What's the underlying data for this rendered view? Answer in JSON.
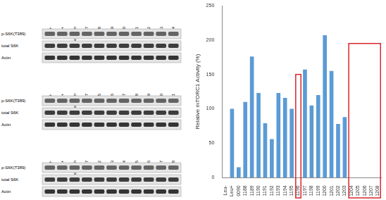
{
  "chart_data": {
    "type": "bar",
    "y_label": "Relative mTORC1 Activity (%)",
    "categories": [
      "Leu-",
      "Leu+",
      "0090",
      "1188",
      "1189",
      "1190",
      "1191",
      "1192",
      "1193",
      "1194",
      "1195",
      "1196",
      "1197",
      "1198",
      "1199",
      "1200",
      "1201",
      "1202",
      "1203",
      "1204",
      "1205",
      "1206",
      "1207",
      "1208"
    ],
    "values": [
      0,
      100,
      15,
      110,
      176,
      123,
      79,
      56,
      123,
      116,
      100,
      null,
      157,
      105,
      120,
      207,
      155,
      78,
      88,
      null,
      null,
      null,
      null,
      null
    ],
    "color": "#5b9bd5",
    "ylim": [
      0,
      250
    ],
    "yticks": [
      0,
      50,
      100,
      150,
      200,
      250
    ],
    "grid": false
  },
  "blots": [
    {
      "lanes": [
        "Leu-",
        "Leu+",
        "Rapamycin",
        "B927",
        "B1188",
        "B1189",
        "B1190",
        "B1191",
        "B1192",
        "B1193",
        "B1194"
      ],
      "rows": [
        "p-S6K(T389)",
        "total S6K",
        "Actin"
      ]
    },
    {
      "lanes": [
        "Leu-",
        "Leu+",
        "Rapamycin",
        "B927",
        "B1195",
        "B1196",
        "B1197",
        "B1198",
        "B1199",
        "B1200",
        "B1201"
      ],
      "rows": [
        "p-S6K(T389)",
        "total S6K",
        "Actin"
      ]
    },
    {
      "lanes": [
        "Leu-",
        "Leu+",
        "Rapamycin",
        "B927",
        "B1202",
        "B1203",
        "B1204",
        "B1205",
        "B1206",
        "B1207",
        "B1208"
      ],
      "rows": [
        "p-S6K(T389)",
        "total S6K",
        "Actin"
      ]
    }
  ]
}
